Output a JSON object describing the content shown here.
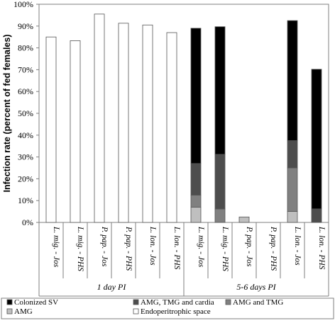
{
  "chart_data": {
    "type": "bar",
    "stacked": true,
    "ylabel": "Infection rate (percent of fed females)",
    "ylim": [
      0,
      100
    ],
    "yticks": [
      "0%",
      "10%",
      "20%",
      "30%",
      "40%",
      "50%",
      "60%",
      "70%",
      "80%",
      "90%",
      "100%"
    ],
    "categories": [
      "L. mig. - Jos",
      "L. mig. - PHS",
      "P. pap. - Jos",
      "P. pap. - PHS",
      "L. lon. - Jos",
      "L. lon. - PHS",
      "L. mig. - Jos",
      "L. mig. - PHS",
      "P. pap. - Jos",
      "P. pap. - PHS",
      "L. lon. - Jos",
      "L. lon. - PHS"
    ],
    "groups": [
      {
        "label": "1 day PI",
        "count": 6
      },
      {
        "label": "5-6 days PI",
        "count": 6
      }
    ],
    "series": [
      {
        "name": "Endoperitrophic space",
        "color": "#ffffff",
        "values": [
          85,
          83.3,
          95.5,
          91.3,
          90.5,
          87,
          0,
          0,
          0,
          0,
          0,
          0
        ]
      },
      {
        "name": "AMG",
        "color": "#bfbfbf",
        "values": [
          0,
          0,
          0,
          0,
          0,
          0,
          7,
          0,
          2.5,
          0,
          5,
          0
        ]
      },
      {
        "name": "AMG and TMG",
        "color": "#808080",
        "values": [
          0,
          0,
          0,
          0,
          0,
          0,
          5.5,
          6.2,
          0,
          0,
          20,
          0
        ]
      },
      {
        "name": "AMG, TMG and cardia",
        "color": "#4d4d4d",
        "values": [
          0,
          0,
          0,
          0,
          0,
          0,
          14.5,
          25,
          0,
          0,
          12.5,
          6.2
        ]
      },
      {
        "name": "Colonized SV",
        "color": "#000000",
        "values": [
          0,
          0,
          0,
          0,
          0,
          0,
          62,
          58.5,
          0,
          0,
          55,
          64
        ]
      }
    ],
    "legend": {
      "position": "bottom",
      "entries": [
        {
          "name": "Colonized SV",
          "color": "#000000"
        },
        {
          "name": "AMG, TMG and cardia",
          "color": "#4d4d4d"
        },
        {
          "name": "AMG and TMG",
          "color": "#808080"
        },
        {
          "name": "AMG",
          "color": "#bfbfbf"
        },
        {
          "name": "Endoperitrophic space",
          "color": "#ffffff"
        }
      ]
    },
    "grid": false
  }
}
